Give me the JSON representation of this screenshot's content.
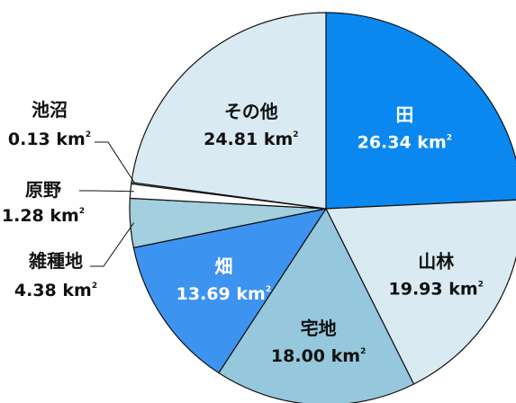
{
  "chart_data": {
    "type": "pie",
    "unit": "km",
    "unit_exp": "2",
    "slices": [
      {
        "label": "田",
        "value": 26.34,
        "value_text": "26.34",
        "color": "#0a88f0",
        "text_color": "#ffffff"
      },
      {
        "label": "山林",
        "value": 19.93,
        "value_text": "19.93",
        "color": "#daeaf3",
        "text_color": "#111111"
      },
      {
        "label": "宅地",
        "value": 18.0,
        "value_text": "18.00",
        "color": "#95c8dc",
        "text_color": "#111111"
      },
      {
        "label": "畑",
        "value": 13.69,
        "value_text": "13.69",
        "color": "#3d93f0",
        "text_color": "#ffffff"
      },
      {
        "label": "雑種地",
        "value": 4.38,
        "value_text": "4.38",
        "color": "#a3cfdf",
        "text_color": "#111111"
      },
      {
        "label": "原野",
        "value": 1.28,
        "value_text": "1.28",
        "color": "#ffffff",
        "text_color": "#111111"
      },
      {
        "label": "池沼",
        "value": 0.13,
        "value_text": "0.13",
        "color": "#d2e6f0",
        "text_color": "#111111"
      },
      {
        "label": "その他",
        "value": 24.81,
        "value_text": "24.81",
        "color": "#daeaf3",
        "text_color": "#111111"
      }
    ]
  }
}
